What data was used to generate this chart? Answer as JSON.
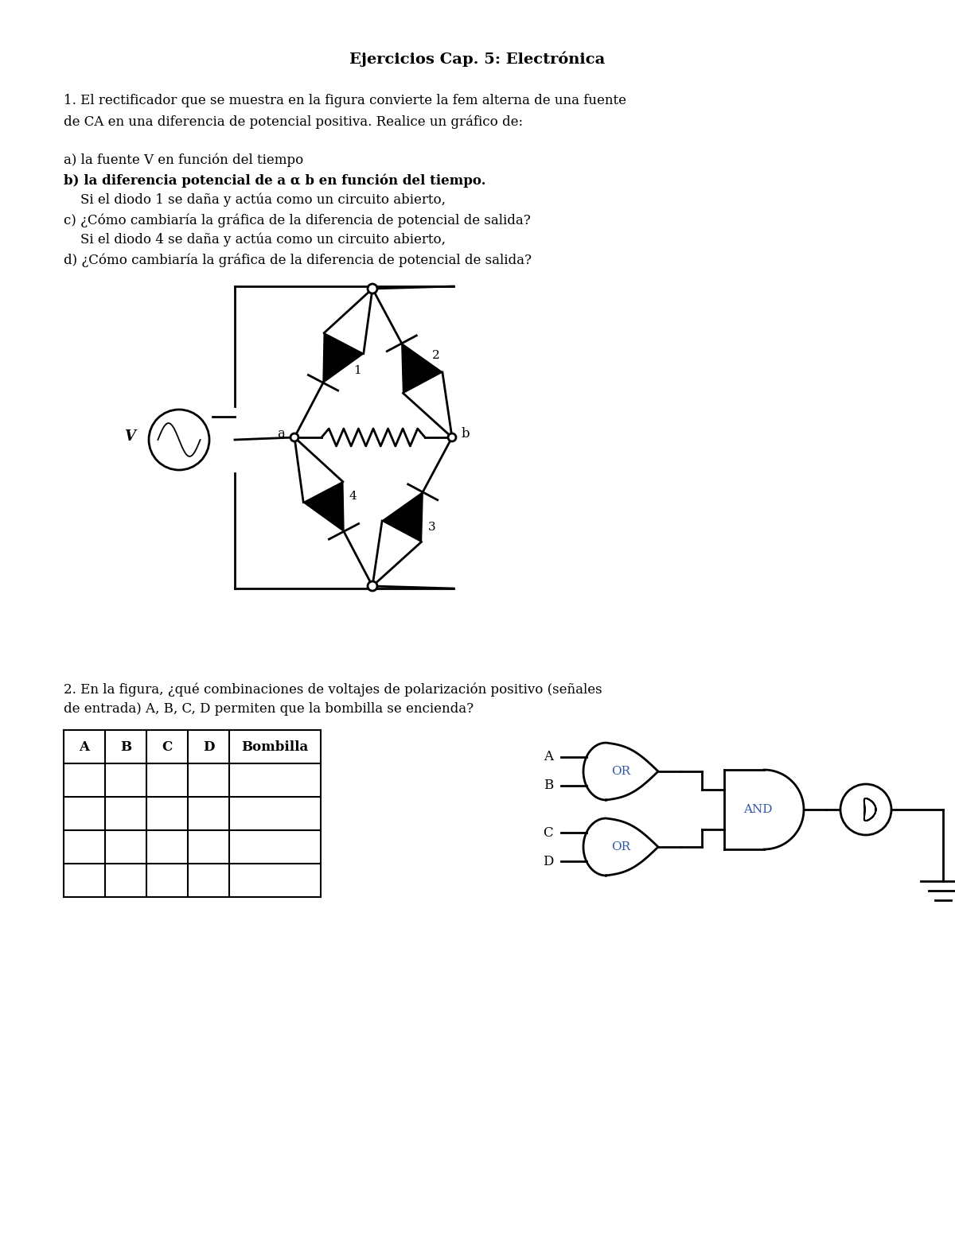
{
  "bg_color": "#ffffff",
  "title": "Ejercicios Cap. 5: Electrónica",
  "p1_line1": "1. El rectificador que se muestra en la figura convierte la fem alterna de una fuente",
  "p1_line2": "de CA en una diferencia de potencial positiva. Realice un gráfico de:",
  "p1_a": "a) la fuente V en función del tiempo",
  "p1_b": "b) la diferencia potencial de a α b en función del tiempo.",
  "p1_c_pre": "    Si el diodo 1 se daña y actúa como un circuito abierto,",
  "p1_c": "c) ¿Cómo cambiaría la gráfica de la diferencia de potencial de salida?",
  "p1_d_pre": "    Si el diodo 4 se daña y actúa como un circuito abierto,",
  "p1_d": "d) ¿Cómo cambiaría la gráfica de la diferencia de potencial de salida?",
  "p2_line1": "2. En la figura, ¿qué combinaciones de voltajes de polarización positivo (señales",
  "p2_line2": "de entrada) A, B, C, D permiten que la bombilla se encienda?",
  "col_labels": [
    "A",
    "B",
    "C",
    "D",
    "Bombilla"
  ],
  "n_data_rows": 4,
  "or_label": "OR",
  "and_label": "AND",
  "label_A": "A",
  "label_B": "B",
  "label_C": "C",
  "label_D": "D",
  "gate_text_color": "#3355aa",
  "circuit_lw": 2.0
}
